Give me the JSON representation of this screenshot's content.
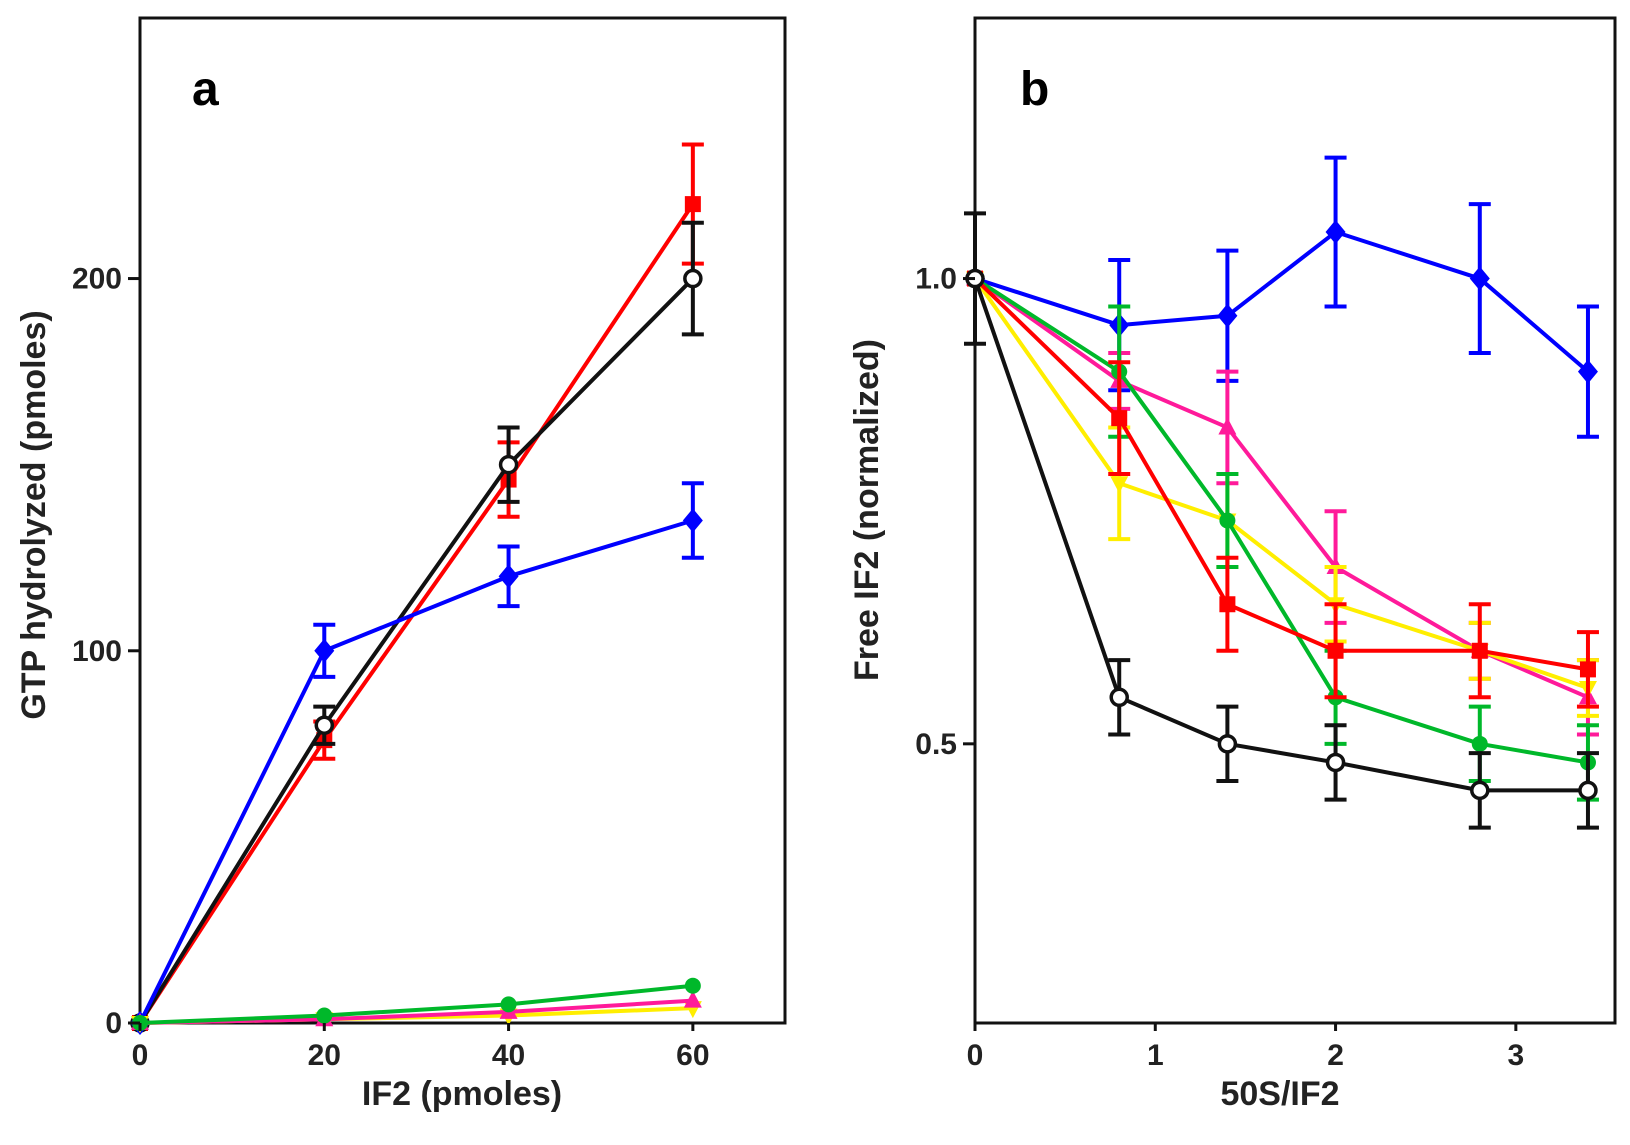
{
  "chart_data": [
    {
      "panel": "a",
      "type": "line",
      "title": "",
      "xlabel": "IF2 (pmoles)",
      "ylabel": "GTP hydrolyzed (pmoles)",
      "xlim": [
        0,
        70
      ],
      "ylim": [
        0,
        270
      ],
      "xticks": [
        0,
        20,
        40,
        60
      ],
      "yticks": [
        0,
        100,
        200
      ],
      "x": [
        0,
        20,
        40,
        60
      ],
      "series": [
        {
          "name": "red",
          "color": "#ff0000",
          "marker": "square",
          "values": [
            0,
            76,
            146,
            220
          ],
          "errors": [
            0,
            5,
            10,
            16
          ]
        },
        {
          "name": "black",
          "color": "#111111",
          "marker": "open-circle",
          "values": [
            0,
            80,
            150,
            200
          ],
          "errors": [
            0,
            5,
            10,
            15
          ]
        },
        {
          "name": "blue",
          "color": "#0000ff",
          "marker": "diamond",
          "values": [
            0,
            100,
            120,
            135
          ],
          "errors": [
            0,
            7,
            8,
            10
          ]
        },
        {
          "name": "yellow",
          "color": "#ffee00",
          "marker": "triangle-down",
          "values": [
            0,
            1,
            2,
            4
          ],
          "errors": [
            0,
            0,
            0,
            0
          ]
        },
        {
          "name": "pink",
          "color": "#ff1a9a",
          "marker": "triangle",
          "values": [
            0,
            1,
            3,
            6
          ],
          "errors": [
            0,
            0,
            0,
            0
          ]
        },
        {
          "name": "green",
          "color": "#00b82a",
          "marker": "circle",
          "values": [
            0,
            2,
            5,
            10
          ],
          "errors": [
            0,
            0,
            0,
            0
          ]
        }
      ]
    },
    {
      "panel": "b",
      "type": "line",
      "title": "",
      "xlabel": "50S/IF2",
      "ylabel": "Free IF2 (normalized)",
      "xlim": [
        0,
        3.55
      ],
      "ylim": [
        0.2,
        1.28
      ],
      "xticks": [
        0,
        1,
        2,
        3
      ],
      "yticks": [
        0.5,
        1.0
      ],
      "ytick_labels": [
        "0.5",
        "1.0"
      ],
      "x": [
        0,
        0.8,
        1.4,
        2.0,
        2.8,
        3.4
      ],
      "series": [
        {
          "name": "blue",
          "color": "#0000ff",
          "marker": "diamond",
          "values": [
            1.0,
            0.95,
            0.96,
            1.05,
            1.0,
            0.9
          ],
          "errors": [
            0,
            0.07,
            0.07,
            0.08,
            0.08,
            0.07
          ]
        },
        {
          "name": "pink",
          "color": "#ff1a9a",
          "marker": "triangle",
          "values": [
            1.0,
            0.89,
            0.84,
            0.69,
            0.6,
            0.55
          ],
          "errors": [
            0,
            0.03,
            0.06,
            0.06,
            0.03,
            0.04
          ]
        },
        {
          "name": "yellow",
          "color": "#ffee00",
          "marker": "triangle-down",
          "values": [
            1.0,
            0.78,
            0.74,
            0.65,
            0.6,
            0.56
          ],
          "errors": [
            0,
            0.06,
            0.05,
            0.04,
            0.03,
            0.03
          ]
        },
        {
          "name": "green",
          "color": "#00b82a",
          "marker": "circle",
          "values": [
            1.0,
            0.9,
            0.74,
            0.55,
            0.5,
            0.48
          ],
          "errors": [
            0,
            0.07,
            0.05,
            0.05,
            0.04,
            0.04
          ]
        },
        {
          "name": "red",
          "color": "#ff0000",
          "marker": "square",
          "values": [
            1.0,
            0.85,
            0.65,
            0.6,
            0.6,
            0.58
          ],
          "errors": [
            0,
            0.06,
            0.05,
            0.05,
            0.05,
            0.04
          ]
        },
        {
          "name": "black",
          "color": "#111111",
          "marker": "open-circle",
          "values": [
            1.0,
            0.55,
            0.5,
            0.48,
            0.45,
            0.45
          ],
          "errors": [
            0.07,
            0.04,
            0.04,
            0.04,
            0.04,
            0.04
          ]
        }
      ]
    }
  ]
}
